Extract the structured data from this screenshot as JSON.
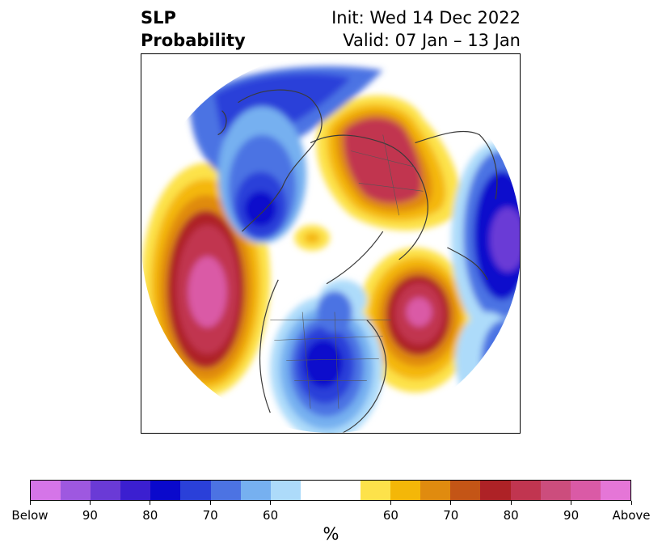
{
  "title": {
    "left_line1": "SLP",
    "left_line2": "Probability",
    "right_line1": "Init: Wed 14 Dec 2022",
    "right_line2": "Valid: 07 Jan – 13 Jan"
  },
  "colorbar": {
    "unit": "%",
    "colors": [
      "#d575e8",
      "#9e58e0",
      "#6a3ad6",
      "#3b1fd0",
      "#0a09cc",
      "#2a40d9",
      "#4c73e3",
      "#76b0f0",
      "#addbfa",
      "#ffffff",
      "#ffffff",
      "#fde24a",
      "#f4b708",
      "#e08b0f",
      "#c45516",
      "#ae2226",
      "#c13550",
      "#cc4d7d",
      "#da5aa6",
      "#e576d7"
    ],
    "tick_labels": [
      "Below",
      "90",
      "80",
      "70",
      "60",
      "60",
      "70",
      "80",
      "90",
      "Above"
    ],
    "colors_note": "below-normal (blue/purple) to above-normal (yellow/red/pink) probability"
  },
  "map": {
    "projection": "north polar stereographic",
    "fill_colors": {
      "blue_light": "#addbfa",
      "blue_mid": "#76b0f0",
      "blue": "#4c73e3",
      "blue_strong": "#2a40d9",
      "blue_deep": "#0a09cc",
      "purple": "#6a3ad6",
      "yellow": "#fde24a",
      "gold": "#f4b708",
      "orange": "#e08b0f",
      "red": "#ae2226",
      "crimson": "#c13550",
      "pink": "#da5aa6"
    }
  }
}
